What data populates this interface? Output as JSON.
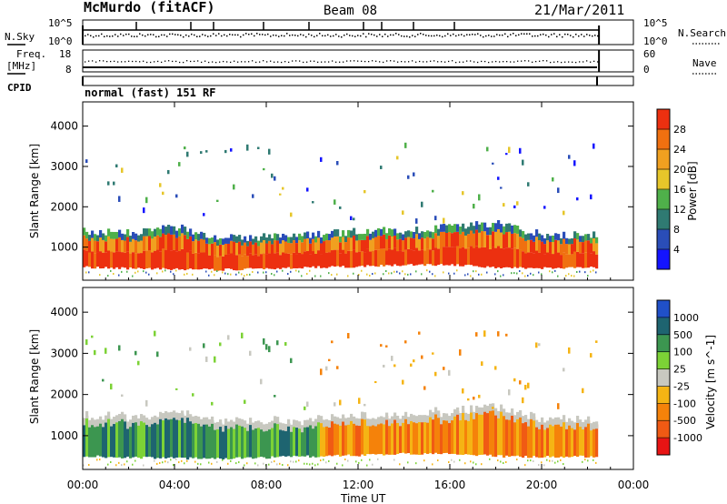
{
  "header": {
    "station": "McMurdo (fitACF)",
    "beam": "Beam 08",
    "date": "21/Mar/2011"
  },
  "noise_panel": {
    "left_label": "N.Sky",
    "right_label": "N.Search",
    "left_ticks": [
      "10^5",
      "10^0"
    ],
    "right_ticks": [
      "10^5",
      "10^0"
    ]
  },
  "freq_panel": {
    "left_label_1": "Freq.",
    "left_label_2": "[MHz]",
    "right_label": "Nave",
    "left_ticks": [
      "18",
      "8"
    ],
    "right_ticks": [
      "60",
      "0"
    ]
  },
  "cpid": {
    "label": "CPID",
    "mode": "normal (fast) 151 RF"
  },
  "x_axis": {
    "label": "Time UT",
    "ticks": [
      "00:00",
      "04:00",
      "08:00",
      "12:00",
      "16:00",
      "20:00",
      "00:00"
    ]
  },
  "chart_data": [
    {
      "type": "heatmap",
      "title": "",
      "xlabel": "Time UT",
      "ylabel": "Slant Range [km]",
      "x_range_hours": [
        0,
        24
      ],
      "ylim": [
        180,
        4600
      ],
      "y_ticks": [
        1000,
        2000,
        3000,
        4000
      ],
      "colorbar": {
        "label": "Power [dB]",
        "range": [
          0,
          32
        ],
        "tick_labels": [
          "4",
          "8",
          "12",
          "16",
          "20",
          "24",
          "28"
        ],
        "colors": [
          "#1414ff",
          "#2a4db8",
          "#2f7a72",
          "#4fb04a",
          "#e6c62a",
          "#f0a020",
          "#f07010",
          "#ec3010"
        ]
      },
      "data_coverage_hours": [
        0,
        22.5
      ],
      "main_echo_band_km": {
        "time_hours": [
          0,
          2,
          4,
          6,
          8,
          10,
          12,
          14,
          16,
          18,
          20,
          22.5
        ],
        "lower": [
          500,
          470,
          450,
          440,
          470,
          500,
          520,
          560,
          560,
          500,
          480,
          500
        ],
        "upper": [
          1400,
          1350,
          1500,
          1250,
          1250,
          1300,
          1400,
          1400,
          1500,
          1600,
          1300,
          1300
        ]
      }
    },
    {
      "type": "heatmap",
      "title": "",
      "xlabel": "Time UT",
      "ylabel": "Slant Range [km]",
      "x_range_hours": [
        0,
        24
      ],
      "ylim": [
        180,
        4600
      ],
      "y_ticks": [
        1000,
        2000,
        3000,
        4000
      ],
      "colorbar": {
        "label": "Velocity [m s^-1]",
        "range": [
          -1250,
          1250
        ],
        "tick_labels": [
          "1000",
          "500",
          "100",
          "25",
          "-25",
          "-100",
          "-500",
          "-1000"
        ],
        "colors": [
          "#e81414",
          "#f05a14",
          "#f5820a",
          "#f5b414",
          "#c8c8c0",
          "#7cd236",
          "#3c9650",
          "#1e6470",
          "#2050c8"
        ]
      },
      "data_coverage_hours": [
        0,
        22.5
      ],
      "velocity_regimes": [
        {
          "time_hours": [
            0,
            10.3
          ],
          "sign": "positive",
          "values_m_s": [
            25,
            500
          ]
        },
        {
          "time_hours": [
            10.3,
            22.5
          ],
          "sign": "negative",
          "values_m_s": [
            -500,
            -25
          ]
        }
      ]
    }
  ]
}
